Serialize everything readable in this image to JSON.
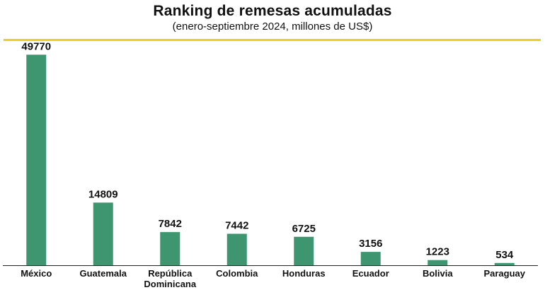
{
  "chart_data": {
    "type": "bar",
    "title": "Ranking de remesas acumuladas",
    "subtitle": "(enero-septiembre 2024, millones de US$)",
    "categories": [
      "México",
      "Guatemala",
      "República\nDominicana",
      "Colombia",
      "Honduras",
      "Ecuador",
      "Bolivia",
      "Paraguay"
    ],
    "values": [
      49770,
      14809,
      7842,
      7442,
      6725,
      3156,
      1223,
      534
    ],
    "ylim": [
      0,
      53000
    ],
    "xlabel": "",
    "ylabel": "",
    "grid": false,
    "legend": "none",
    "bar_color": "#3d9670",
    "accent_color": "#f2cc1f"
  }
}
